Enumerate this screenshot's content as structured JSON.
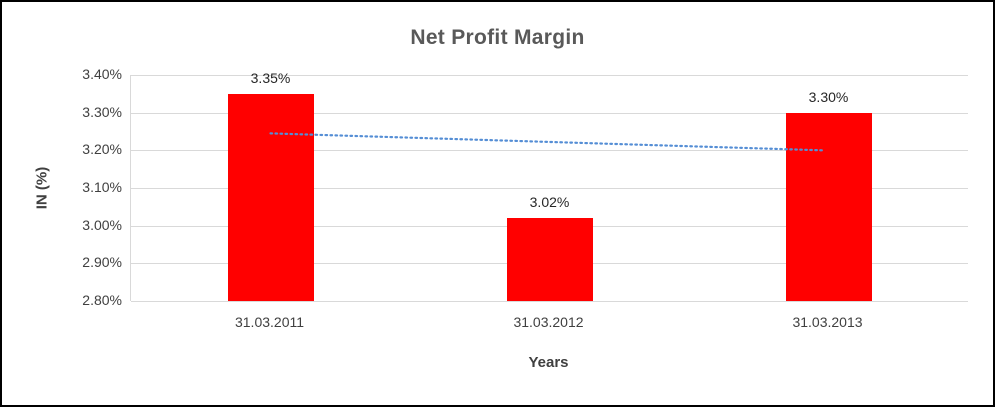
{
  "chart_data": {
    "type": "bar",
    "title": "Net Profit Margin",
    "xlabel": "Years",
    "ylabel": "IN (%)",
    "categories": [
      "31.03.2011",
      "31.03.2012",
      "31.03.2013"
    ],
    "values": [
      3.35,
      3.02,
      3.3
    ],
    "value_labels": [
      "3.35%",
      "3.02%",
      "3.30%"
    ],
    "ylim": [
      2.8,
      3.4
    ],
    "yticks": [
      3.4,
      3.3,
      3.2,
      3.1,
      3.0,
      2.9,
      2.8
    ],
    "ytick_labels": [
      "3.40%",
      "3.30%",
      "3.20%",
      "3.10%",
      "3.00%",
      "2.90%",
      "2.80%"
    ],
    "grid": "horizontal",
    "legend": "none",
    "bar_color": "#ff0000",
    "gridline_color": "#d9d9d9",
    "trendline": {
      "style": "dotted",
      "color": "#558ed5",
      "start_value": 3.245,
      "end_value": 3.2
    }
  },
  "colors": {
    "frame_border": "#000000",
    "title_text": "#595959",
    "axis_text": "#404040",
    "background": "#ffffff"
  }
}
